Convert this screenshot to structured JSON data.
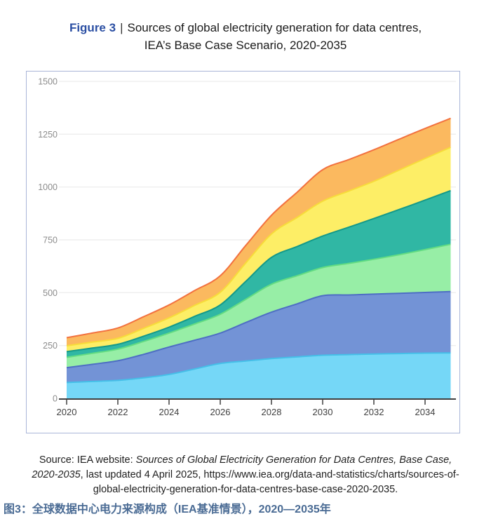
{
  "figure": {
    "label": "Figure 3",
    "separator": "|",
    "title_line1": "Sources of global electricity generation for data centres,",
    "title_line2": "IEA’s Base Case Scenario, 2020-2035",
    "label_color": "#2b4fa3"
  },
  "source_note": {
    "prefix": "Source: IEA website: ",
    "italic": "Sources of Global Electricity Generation for Data Centres, Base Case, 2020-2035",
    "suffix": ", last updated 4 April 2025, https://www.iea.org/data-and-statistics/charts/sources-of-global-electricity-generation-for-data-centres-base-case-2020-2035."
  },
  "caption_zh": "图3：全球数据中心电力来源构成（IEA基准情景），2020—2035年",
  "chart_data": {
    "type": "area",
    "stacked": true,
    "title": "Sources of global electricity generation for data centres, IEA's Base Case Scenario, 2020-2035",
    "xlabel": "",
    "ylabel": "",
    "legend": "none",
    "grid": "horizontal",
    "ylim": [
      0,
      1500
    ],
    "yticks": [
      0,
      250,
      500,
      750,
      1000,
      1250,
      1500
    ],
    "xticks": [
      2020,
      2022,
      2024,
      2026,
      2028,
      2030,
      2032,
      2034
    ],
    "x": [
      2020,
      2021,
      2022,
      2023,
      2024,
      2025,
      2026,
      2027,
      2028,
      2029,
      2030,
      2031,
      2032,
      2033,
      2034,
      2035
    ],
    "series": [
      {
        "name": "cyan-band",
        "fill": "#75d7f7",
        "stroke": "#45bfe8",
        "values": [
          75,
          80,
          85,
          97,
          113,
          139,
          165,
          177,
          188,
          196,
          204,
          207,
          210,
          212,
          214,
          215
        ]
      },
      {
        "name": "blue-band",
        "fill": "#7393d6",
        "stroke": "#4e6ec4",
        "values": [
          70,
          81,
          93,
          111,
          130,
          136,
          144,
          182,
          220,
          251,
          282,
          282,
          283,
          285,
          287,
          290
        ]
      },
      {
        "name": "green-band",
        "fill": "#97eea6",
        "stroke": "#63dc82",
        "values": [
          49,
          52,
          55,
          61,
          66,
          77,
          89,
          110,
          132,
          133,
          133,
          149,
          165,
          183,
          203,
          224
        ]
      },
      {
        "name": "teal-band",
        "fill": "#30b7a4",
        "stroke": "#13998a",
        "values": [
          27,
          25,
          23,
          25,
          28,
          36,
          44,
          85,
          127,
          138,
          149,
          171,
          193,
          214,
          234,
          254
        ]
      },
      {
        "name": "yellow-band",
        "fill": "#fdee66",
        "stroke": "#f7dc3a",
        "values": [
          28,
          28,
          28,
          37,
          44,
          52,
          60,
          87,
          111,
          138,
          165,
          171,
          176,
          187,
          197,
          205
        ]
      },
      {
        "name": "orange-band",
        "fill": "#fbb95f",
        "stroke": "#f2713f",
        "values": [
          38,
          43,
          49,
          55,
          61,
          70,
          78,
          83,
          88,
          119,
          149,
          149,
          149,
          146,
          142,
          137
        ]
      }
    ],
    "axis_color": "#3f3f3f",
    "gridline_color": "#e7e7e7",
    "ytick_label_color": "#8c8c8c",
    "xtick_label_color": "#404040"
  }
}
